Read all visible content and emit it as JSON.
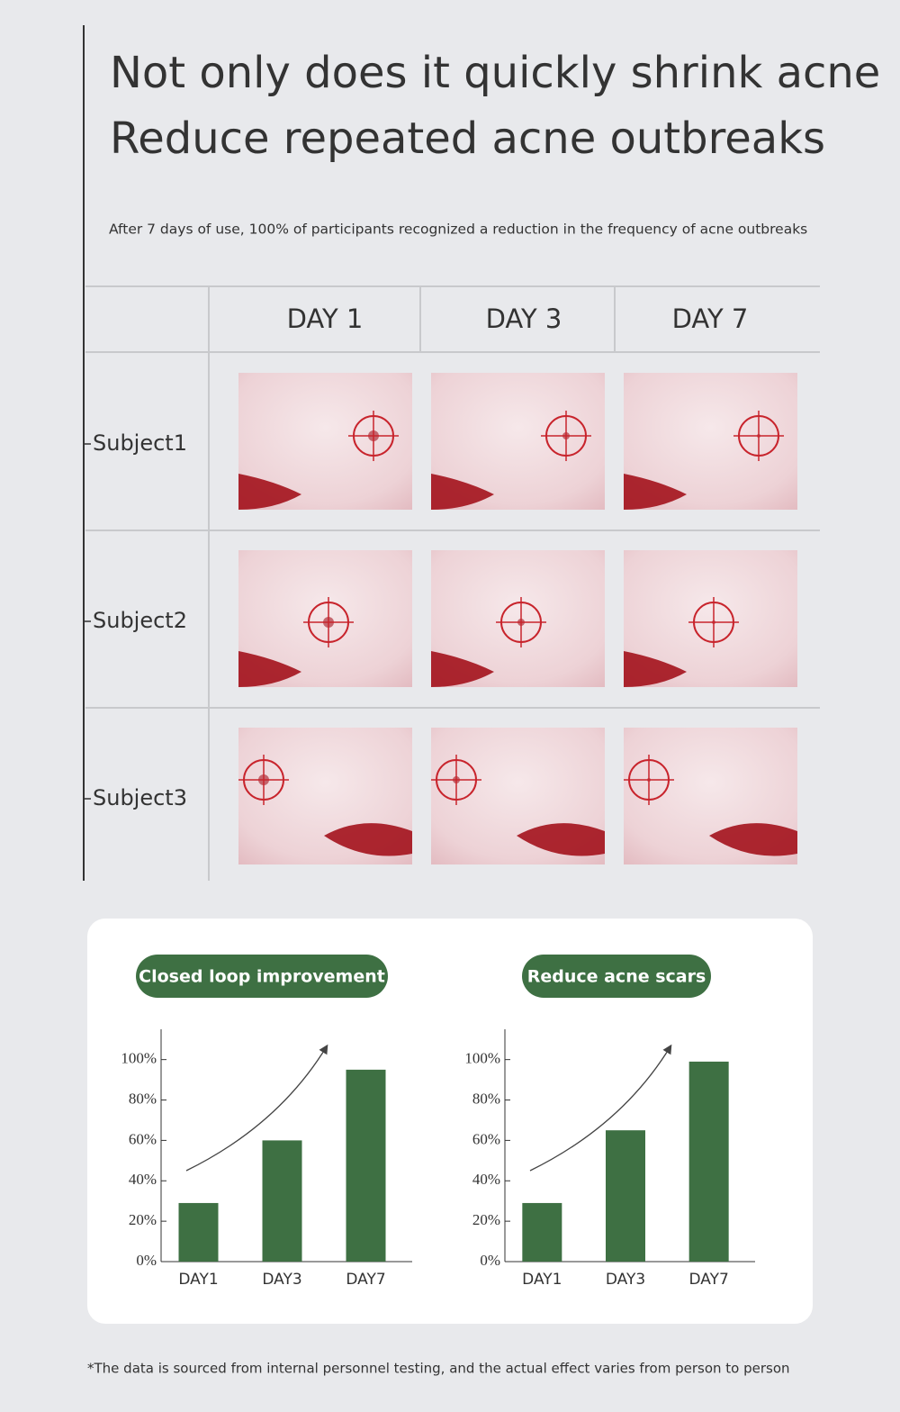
{
  "header": {
    "title": [
      "Not only does it quickly shrink acne",
      "Reduce repeated acne outbreaks"
    ],
    "subtitle": "After 7 days of use, 100% of participants recognized a reduction in the frequency of acne outbreaks"
  },
  "table": {
    "columns": [
      "DAY  1",
      "DAY  3",
      "DAY  7"
    ],
    "rows": [
      "Subject1",
      "Subject2",
      "Subject3"
    ]
  },
  "chart_data": [
    {
      "type": "bar",
      "title": "Closed loop improvement",
      "categories": [
        "DAY1",
        "DAY3",
        "DAY7"
      ],
      "values": [
        29,
        60,
        95
      ],
      "color": "#3e7043",
      "ylim": [
        0,
        115
      ],
      "yticks": [
        {
          "value": 0,
          "label": "0%"
        },
        {
          "value": 20,
          "label": "20%"
        },
        {
          "value": 40,
          "label": "40%"
        },
        {
          "value": 60,
          "label": "60%"
        },
        {
          "value": 80,
          "label": "80%"
        },
        {
          "value": 100,
          "label": "100%"
        }
      ]
    },
    {
      "type": "bar",
      "title": "Reduce acne scars",
      "categories": [
        "DAY1",
        "DAY3",
        "DAY7"
      ],
      "values": [
        29,
        65,
        99
      ],
      "color": "#3e7043",
      "ylim": [
        0,
        115
      ],
      "yticks": [
        {
          "value": 0,
          "label": "0%"
        },
        {
          "value": 20,
          "label": "20%"
        },
        {
          "value": 40,
          "label": "40%"
        },
        {
          "value": 60,
          "label": "60%"
        },
        {
          "value": 80,
          "label": "80%"
        },
        {
          "value": 100,
          "label": "100%"
        }
      ]
    }
  ],
  "footnote": "*The data is sourced from internal personnel testing, and the actual effect varies from person to person"
}
